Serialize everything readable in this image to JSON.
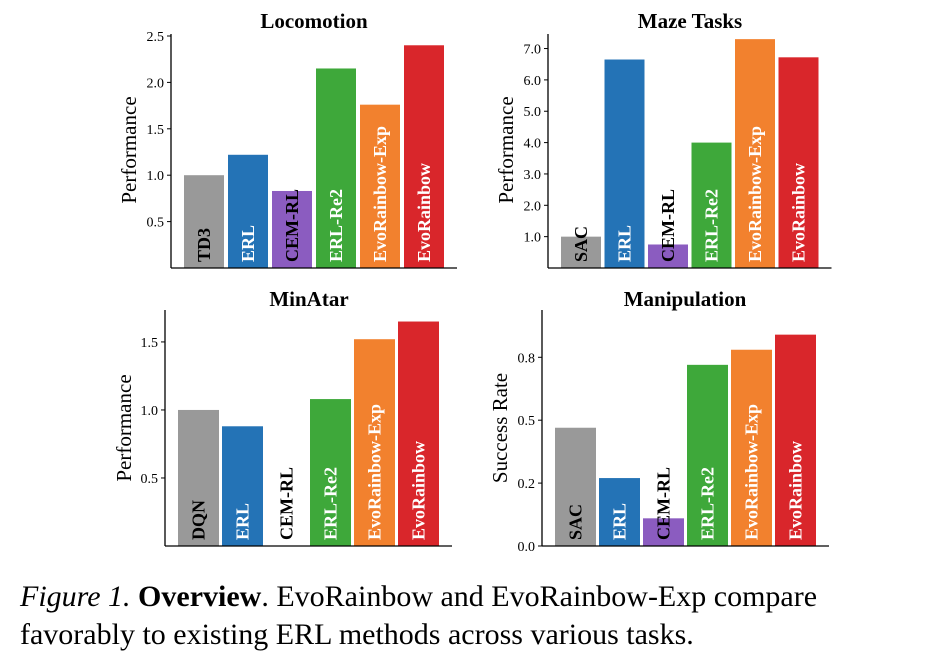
{
  "chart_data": [
    {
      "type": "bar",
      "title": "Locomotion",
      "ylabel": "Performance",
      "ylim": [
        0,
        2.5
      ],
      "yticks": [
        "0.5",
        "1.0",
        "1.5",
        "2.0",
        "2.5"
      ],
      "categories": [
        "TD3",
        "ERL",
        "CEM-RL",
        "ERL-Re2",
        "EvoRainbow-Exp",
        "EvoRainbow"
      ],
      "values": [
        1.0,
        1.22,
        0.83,
        2.15,
        1.76,
        2.4
      ],
      "colors": [
        "#999999",
        "#2473b6",
        "#8b5cc0",
        "#3ea83a",
        "#f2812e",
        "#d9262b"
      ],
      "label_colors": [
        "#000000",
        "#ffffff",
        "#000000",
        "#ffffff",
        "#ffffff",
        "#ffffff"
      ]
    },
    {
      "type": "bar",
      "title": "Maze Tasks",
      "ylabel": "Performance",
      "ylim": [
        0,
        7.4
      ],
      "yticks": [
        "1.0",
        "2.0",
        "3.0",
        "4.0",
        "5.0",
        "6.0",
        "7.0"
      ],
      "categories": [
        "SAC",
        "ERL",
        "CEM-RL",
        "ERL-Re2",
        "EvoRainbow-Exp",
        "EvoRainbow"
      ],
      "values": [
        1.0,
        6.65,
        0.75,
        4.0,
        7.3,
        6.72
      ],
      "colors": [
        "#999999",
        "#2473b6",
        "#8b5cc0",
        "#3ea83a",
        "#f2812e",
        "#d9262b"
      ],
      "label_colors": [
        "#000000",
        "#ffffff",
        "#000000",
        "#ffffff",
        "#ffffff",
        "#ffffff"
      ]
    },
    {
      "type": "bar",
      "title": "MinAtar",
      "ylabel": "Performance",
      "ylim": [
        0,
        1.72
      ],
      "yticks": [
        "0.5",
        "1.0",
        "1.5"
      ],
      "categories": [
        "DQN",
        "ERL",
        "CEM-RL",
        "ERL-Re2",
        "EvoRainbow-Exp",
        "EvoRainbow"
      ],
      "values": [
        1.0,
        0.88,
        0,
        1.08,
        1.52,
        1.65
      ],
      "colors": [
        "#999999",
        "#2473b6",
        "#8b5cc0",
        "#3ea83a",
        "#f2812e",
        "#d9262b"
      ],
      "label_colors": [
        "#000000",
        "#ffffff",
        "#000000",
        "#ffffff",
        "#ffffff",
        "#ffffff"
      ]
    },
    {
      "type": "bar",
      "title": "Manipulation",
      "ylabel": "Success Rate",
      "ylim": [
        0,
        0.93
      ],
      "yticks": [
        "0.0",
        "0.2",
        "0.5",
        "0.8"
      ],
      "ytick_values": [
        0,
        0.25,
        0.5,
        0.75
      ],
      "categories": [
        "SAC",
        "ERL",
        "CEM-RL",
        "ERL-Re2",
        "EvoRainbow-Exp",
        "EvoRainbow"
      ],
      "values": [
        0.47,
        0.27,
        0.11,
        0.72,
        0.78,
        0.84
      ],
      "colors": [
        "#999999",
        "#2473b6",
        "#8b5cc0",
        "#3ea83a",
        "#f2812e",
        "#d9262b"
      ],
      "label_colors": [
        "#000000",
        "#ffffff",
        "#000000",
        "#ffffff",
        "#ffffff",
        "#ffffff"
      ]
    }
  ],
  "caption": {
    "figure_label": "Figure 1.",
    "heading": "Overview",
    "text": ". EvoRainbow and EvoRainbow-Exp compare favorably to existing ERL methods across various tasks."
  }
}
